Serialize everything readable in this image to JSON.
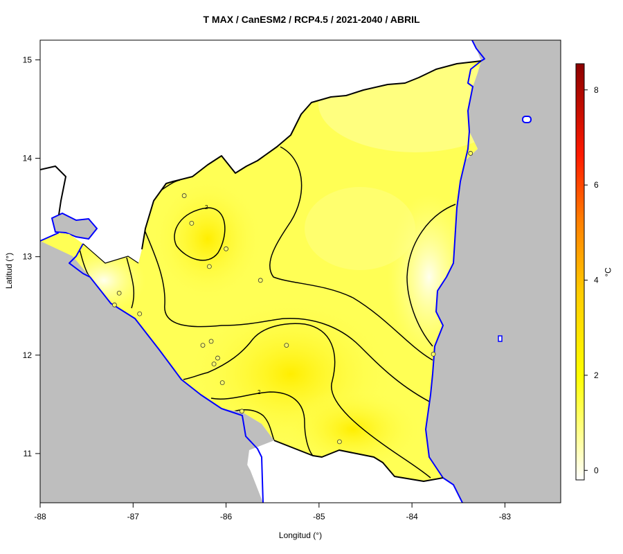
{
  "title": "T MAX / CanESM2 / RCP4.5 / 2021-2040 / ABRIL",
  "xlabel": "Longitud (°)",
  "ylabel": "Latitud (°)",
  "legend_unit": "°C",
  "contour_label": "2",
  "colors": {
    "land": "#ffff55",
    "ocean": "#bebebe",
    "coast": "#0000ff",
    "border": "#000000",
    "scale_low": "#ffffff",
    "scale_mid": "#ffff00",
    "scale_high": "#8b0000"
  },
  "chart_data": {
    "type": "heatmap",
    "title": "T MAX / CanESM2 / RCP4.5 / 2021-2040 / ABRIL",
    "xlabel": "Longitud (°)",
    "ylabel": "Latitud (°)",
    "x_ticks": [
      "-88",
      "-87",
      "-86",
      "-85",
      "-84",
      "-83"
    ],
    "x_tick_values": [
      -88,
      -87,
      -86,
      -85,
      -84,
      -83
    ],
    "y_ticks": [
      "11",
      "12",
      "13",
      "14",
      "15"
    ],
    "y_tick_values": [
      11,
      12,
      13,
      14,
      15
    ],
    "xlim": [
      -88,
      -82.4
    ],
    "ylim": [
      10.5,
      15.2
    ],
    "colorbar": {
      "ticks": [
        "0",
        "2",
        "4",
        "6",
        "8"
      ],
      "tick_values": [
        0,
        2,
        4,
        6,
        8
      ],
      "range": [
        -0.2,
        8.55
      ],
      "placement": "right"
    },
    "stations": [
      {
        "lon": -86.45,
        "lat": 13.62
      },
      {
        "lon": -86.37,
        "lat": 13.34
      },
      {
        "lon": -86.0,
        "lat": 13.08
      },
      {
        "lon": -86.18,
        "lat": 12.9
      },
      {
        "lon": -85.63,
        "lat": 12.76
      },
      {
        "lon": -87.15,
        "lat": 12.63
      },
      {
        "lon": -87.2,
        "lat": 12.51
      },
      {
        "lon": -86.93,
        "lat": 12.42
      },
      {
        "lon": -86.25,
        "lat": 12.1
      },
      {
        "lon": -86.16,
        "lat": 12.14
      },
      {
        "lon": -86.09,
        "lat": 11.97
      },
      {
        "lon": -86.13,
        "lat": 11.91
      },
      {
        "lon": -86.04,
        "lat": 11.72
      },
      {
        "lon": -85.83,
        "lat": 11.43
      },
      {
        "lon": -85.35,
        "lat": 12.1
      },
      {
        "lon": -84.78,
        "lat": 11.12
      },
      {
        "lon": -83.77,
        "lat": 12.01
      },
      {
        "lon": -83.37,
        "lat": 14.05
      }
    ]
  }
}
